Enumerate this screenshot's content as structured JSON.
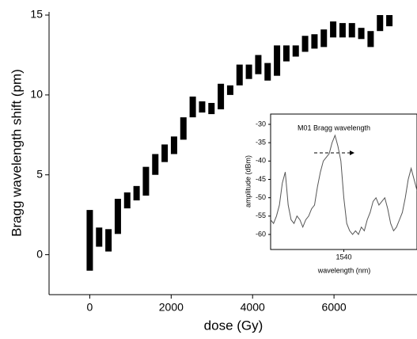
{
  "chart_data": [
    {
      "type": "floating-bar",
      "xlabel": "dose (Gy)",
      "ylabel": "Bragg wavelength shift (pm)",
      "xlim": [
        -1000,
        8000
      ],
      "ylim": [
        -2.5,
        15.2
      ],
      "xticks": [
        0,
        2000,
        4000,
        6000
      ],
      "yticks": [
        0,
        5,
        10,
        15
      ],
      "color": "#000000",
      "x": [
        0,
        230,
        460,
        690,
        920,
        1150,
        1380,
        1610,
        1840,
        2070,
        2300,
        2530,
        2760,
        2990,
        3220,
        3450,
        3680,
        3910,
        4140,
        4370,
        4600,
        4830,
        5060,
        5290,
        5520,
        5750,
        5980,
        6210,
        6440,
        6670,
        6900,
        7130,
        7360
      ],
      "low": [
        -1.0,
        0.5,
        0.2,
        1.3,
        2.9,
        3.4,
        3.7,
        5.0,
        5.8,
        6.3,
        7.2,
        8.6,
        8.9,
        8.8,
        9.1,
        10.0,
        10.6,
        11.0,
        11.3,
        10.9,
        11.2,
        12.1,
        12.4,
        12.7,
        12.9,
        13.0,
        13.6,
        13.6,
        13.6,
        13.5,
        13.0,
        14.0,
        14.3
      ],
      "high": [
        2.8,
        1.7,
        1.6,
        3.5,
        3.9,
        4.3,
        5.5,
        6.3,
        6.9,
        7.4,
        8.6,
        9.9,
        9.6,
        9.5,
        10.7,
        10.6,
        11.9,
        11.9,
        12.5,
        12.0,
        13.1,
        13.1,
        13.1,
        13.7,
        13.8,
        14.1,
        14.6,
        14.5,
        14.5,
        14.2,
        14.0,
        15.0,
        15.0
      ]
    },
    {
      "type": "line",
      "title": "M01 Bragg wavelength",
      "xlabel": "wavelength (nm)",
      "ylabel": "amplitude (dBm)",
      "xlim": [
        1530,
        1550
      ],
      "ylim": [
        -64.1,
        -27.2
      ],
      "xticks": [
        1540
      ],
      "yticks": [
        -30,
        -35,
        -40,
        -45,
        -50,
        -55,
        -60
      ],
      "color": "#555555",
      "x": [
        1530.0,
        1530.4,
        1530.8,
        1531.2,
        1531.6,
        1532.0,
        1532.4,
        1532.8,
        1533.2,
        1533.6,
        1534.0,
        1534.4,
        1534.8,
        1535.2,
        1535.6,
        1536.0,
        1536.4,
        1536.8,
        1537.2,
        1537.6,
        1538.0,
        1538.4,
        1538.8,
        1539.2,
        1539.6,
        1540.0,
        1540.4,
        1540.8,
        1541.2,
        1541.6,
        1542.0,
        1542.4,
        1542.8,
        1543.2,
        1543.6,
        1544.0,
        1544.4,
        1544.8,
        1545.2,
        1545.6,
        1546.0,
        1546.4,
        1546.8,
        1547.2,
        1547.6,
        1548.0,
        1548.4,
        1548.8,
        1549.2,
        1549.6,
        1550.0
      ],
      "values": [
        -56,
        -57,
        -55,
        -52,
        -46,
        -43,
        -52,
        -56,
        -57,
        -55,
        -56,
        -58,
        -56,
        -55,
        -53,
        -52,
        -47,
        -43,
        -40,
        -39,
        -38,
        -35,
        -33,
        -36,
        -40,
        -50,
        -57,
        -59,
        -60,
        -59,
        -60,
        -58,
        -59,
        -56,
        -54,
        -51,
        -50,
        -52,
        -51,
        -50,
        -53,
        -57,
        -59,
        -58,
        -56,
        -54,
        -50,
        -45,
        -42,
        -45,
        -48
      ]
    }
  ]
}
